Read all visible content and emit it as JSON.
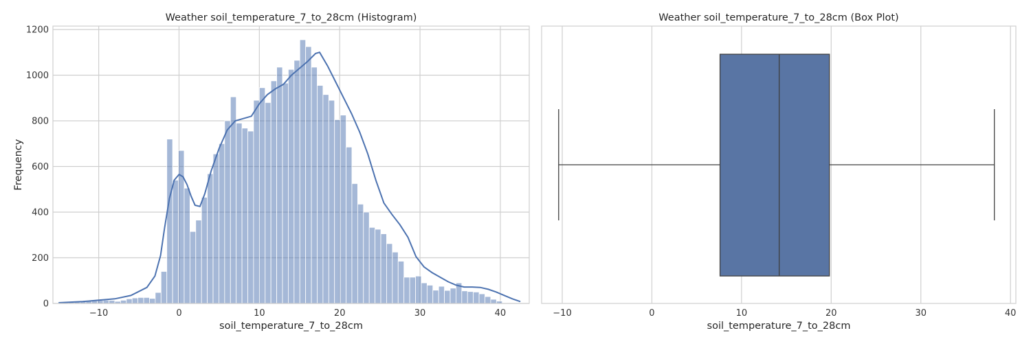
{
  "chart_data": [
    {
      "type": "bar",
      "title": "Weather soil_temperature_7_to_28cm (Histogram)",
      "xlabel": "soil_temperature_7_to_28cm",
      "ylabel": "Frequency",
      "xlim": [
        -15.7,
        43.6
      ],
      "ylim": [
        0,
        1215
      ],
      "xticks": [
        -10,
        0,
        10,
        20,
        30,
        40
      ],
      "yticks": [
        0,
        200,
        400,
        600,
        800,
        1000,
        1200
      ],
      "grid": true,
      "bar_color": "#4c72b0",
      "kde_color": "#4c72b0",
      "bin_start": -15.2,
      "bin_width": 0.72,
      "values": [
        3,
        4,
        5,
        7,
        10,
        12,
        13,
        13,
        14,
        13,
        9,
        14,
        20,
        24,
        26,
        26,
        22,
        48,
        140,
        720,
        540,
        670,
        505,
        315,
        365,
        465,
        568,
        655,
        700,
        800,
        905,
        790,
        768,
        755,
        890,
        945,
        880,
        975,
        1035,
        965,
        1025,
        1065,
        1155,
        1125,
        1035,
        955,
        915,
        890,
        805,
        825,
        685,
        525,
        435,
        400,
        333,
        325,
        305,
        262,
        225,
        185,
        115,
        115,
        120,
        90,
        80,
        58,
        75,
        57,
        67,
        90,
        55,
        52,
        50,
        42,
        30,
        18,
        10
      ],
      "kde": {
        "x": [
          -15.0,
          -12.0,
          -10.0,
          -8.0,
          -6.0,
          -4.0,
          -3.0,
          -2.3,
          -1.8,
          -1.2,
          -0.6,
          0.0,
          0.5,
          1.0,
          1.5,
          2.0,
          2.6,
          3.2,
          4.0,
          5.0,
          6.0,
          7.0,
          8.0,
          9.0,
          10.0,
          11.0,
          12.0,
          13.0,
          14.0,
          15.0,
          16.0,
          17.0,
          17.5,
          18.5,
          19.5,
          20.5,
          21.5,
          22.5,
          23.5,
          24.5,
          25.5,
          26.5,
          27.5,
          28.5,
          29.5,
          30.5,
          31.5,
          32.5,
          33.5,
          34.5,
          35.5,
          36.5,
          37.5,
          38.5,
          39.5,
          40.5,
          41.5,
          42.5
        ],
        "y": [
          3,
          8,
          14,
          20,
          35,
          70,
          120,
          210,
          330,
          460,
          540,
          565,
          555,
          520,
          470,
          430,
          425,
          480,
          580,
          680,
          760,
          800,
          810,
          820,
          875,
          915,
          940,
          960,
          1000,
          1030,
          1060,
          1095,
          1100,
          1040,
          970,
          900,
          830,
          750,
          655,
          540,
          440,
          390,
          345,
          290,
          205,
          160,
          135,
          115,
          95,
          80,
          72,
          72,
          70,
          62,
          50,
          35,
          20,
          8
        ]
      }
    },
    {
      "type": "box",
      "title": "Weather soil_temperature_7_to_28cm (Box Plot)",
      "xlabel": "soil_temperature_7_to_28cm",
      "xlim": [
        -12.3,
        40.6
      ],
      "xticks": [
        -10,
        0,
        10,
        20,
        30,
        40
      ],
      "grid": true,
      "box_color": "#5975a4",
      "whisker_low": -10.4,
      "q1": 7.6,
      "median": 14.2,
      "q3": 19.8,
      "whisker_high": 38.2
    }
  ]
}
